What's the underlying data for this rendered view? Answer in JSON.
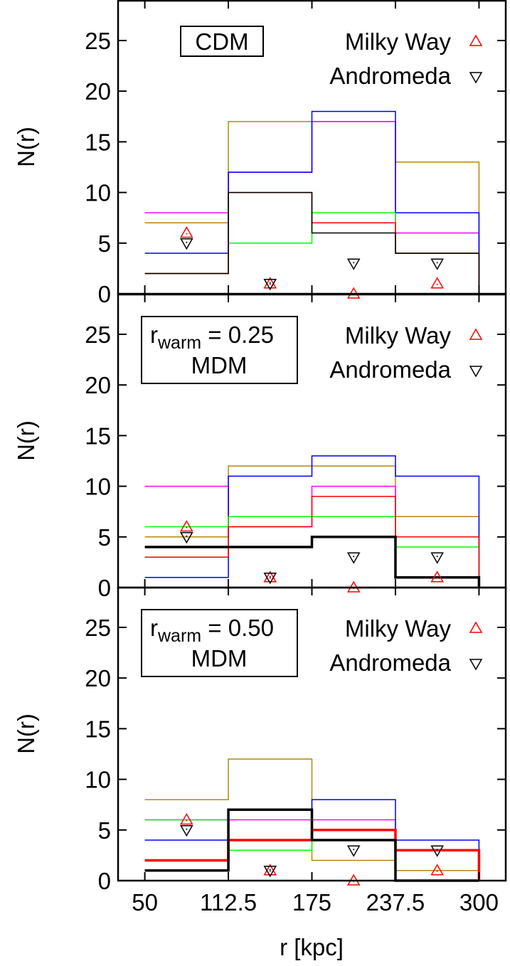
{
  "chart_data": {
    "type": "step-histogram with markers",
    "x_ticks": [
      "50",
      "112.5",
      "175",
      "237.5",
      "300"
    ],
    "xlabel": "r [kpc]",
    "xlim": [
      30,
      320
    ],
    "bin_edges": [
      50,
      112.5,
      175,
      237.5,
      300
    ],
    "y_ticks": [
      "0",
      "5",
      "10",
      "15",
      "20",
      "25"
    ],
    "ylabel": "N(r)",
    "ylim": [
      0,
      29
    ],
    "legend": {
      "milky_way_label": "Milky Way",
      "andromeda_label": "Andromeda",
      "milky_way_color": "#ff0000",
      "andromeda_color": "#000000",
      "placement": "top-right"
    },
    "observations": {
      "milky_way": {
        "x": [
          81.25,
          143.75,
          206.25,
          268.75
        ],
        "y": [
          6,
          1,
          0,
          1
        ]
      },
      "andromeda": {
        "x": [
          81.25,
          143.75,
          206.25,
          268.75
        ],
        "y": [
          5,
          1,
          3,
          3
        ]
      }
    },
    "panels": [
      {
        "label_lines": [
          "CDM"
        ],
        "label_sub": "",
        "series": [
          {
            "color": "#b8860b",
            "width": 1.5,
            "values": [
              7,
              17,
              17,
              13
            ]
          },
          {
            "color": "#ff00ff",
            "width": 1.5,
            "values": [
              8,
              12,
              17,
              6
            ]
          },
          {
            "color": "#0000ff",
            "width": 1.5,
            "values": [
              4,
              12,
              18,
              8
            ]
          },
          {
            "color": "#00ff00",
            "width": 1.5,
            "values": [
              2,
              5,
              8,
              4
            ]
          },
          {
            "color": "#ff0000",
            "width": 1.5,
            "values": [
              2,
              10,
              7,
              4
            ]
          },
          {
            "color": "#000000",
            "width": 1.5,
            "values": [
              2,
              10,
              6,
              4
            ]
          }
        ]
      },
      {
        "label_lines": [
          "r",
          "= 0.25",
          "MDM"
        ],
        "label_sub": "warm",
        "series": [
          {
            "color": "#b8860b",
            "width": 1.5,
            "values": [
              5,
              12,
              12,
              7
            ]
          },
          {
            "color": "#ff00ff",
            "width": 1.5,
            "values": [
              10,
              6,
              10,
              5
            ]
          },
          {
            "color": "#0000ff",
            "width": 1.5,
            "values": [
              1,
              11,
              13,
              11
            ]
          },
          {
            "color": "#00ff00",
            "width": 1.5,
            "values": [
              6,
              7,
              7,
              4
            ]
          },
          {
            "color": "#ff0000",
            "width": 1.5,
            "values": [
              3,
              6,
              9,
              5
            ]
          },
          {
            "color": "#000000",
            "width": 3.5,
            "values": [
              4,
              4,
              5,
              1
            ]
          }
        ]
      },
      {
        "label_lines": [
          "r",
          "= 0.50",
          "MDM"
        ],
        "label_sub": "warm",
        "series": [
          {
            "color": "#b8860b",
            "width": 1.5,
            "values": [
              8,
              12,
              2,
              1
            ]
          },
          {
            "color": "#ff00ff",
            "width": 1.5,
            "values": [
              6,
              6,
              6,
              3
            ]
          },
          {
            "color": "#0000ff",
            "width": 1.5,
            "values": [
              4,
              4,
              8,
              4
            ]
          },
          {
            "color": "#00ff00",
            "width": 1.5,
            "values": [
              6,
              3,
              5,
              3
            ]
          },
          {
            "color": "#ff0000",
            "width": 3.5,
            "values": [
              2,
              4,
              5,
              3
            ]
          },
          {
            "color": "#000000",
            "width": 3.5,
            "values": [
              1,
              7,
              4,
              0
            ]
          }
        ]
      }
    ]
  }
}
